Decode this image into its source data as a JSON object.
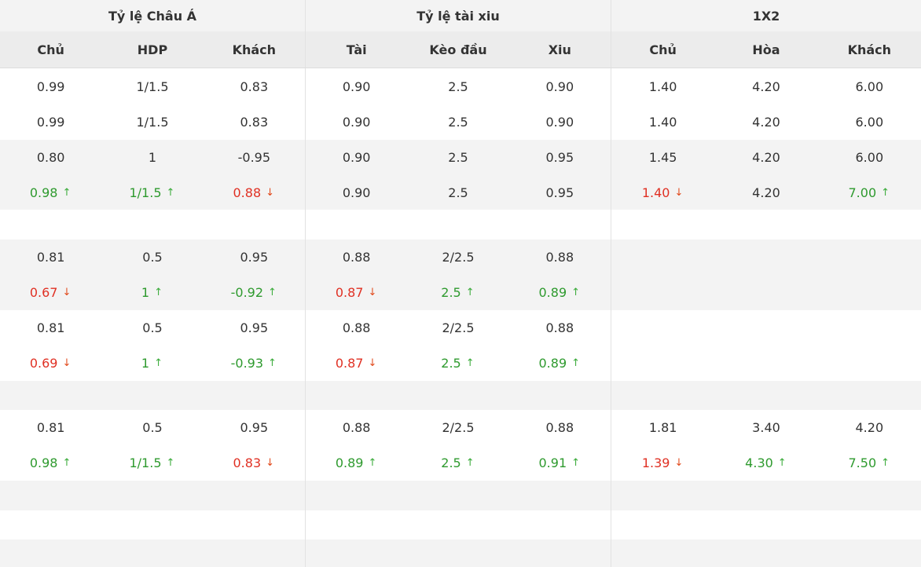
{
  "groups": {
    "asian": "Tỷ lệ Châu Á",
    "overunder": "Tỷ lệ tài xiu",
    "onextwo": "1X2"
  },
  "columns": {
    "asian": [
      "Chủ",
      "HDP",
      "Khách"
    ],
    "overunder": [
      "Tài",
      "Kèo đầu",
      "Xiu"
    ],
    "onextwo": [
      "Chủ",
      "Hòa",
      "Khách"
    ]
  },
  "icons": {
    "up": "arrow-up-icon",
    "down": "arrow-down-icon"
  },
  "colors": {
    "up": "#2e9a2e",
    "down": "#e03023",
    "header_bg": "#ececec",
    "stripe_bg": "#f3f3f3"
  },
  "rows": [
    {
      "cells": [
        {
          "v": "0.99"
        },
        {
          "v": "1/1.5"
        },
        {
          "v": "0.83"
        },
        {
          "v": "0.90"
        },
        {
          "v": "2.5"
        },
        {
          "v": "0.90"
        },
        {
          "v": "1.40"
        },
        {
          "v": "4.20"
        },
        {
          "v": "6.00"
        }
      ]
    },
    {
      "cells": [
        {
          "v": "0.99"
        },
        {
          "v": "1/1.5"
        },
        {
          "v": "0.83"
        },
        {
          "v": "0.90"
        },
        {
          "v": "2.5"
        },
        {
          "v": "0.90"
        },
        {
          "v": "1.40"
        },
        {
          "v": "4.20"
        },
        {
          "v": "6.00"
        }
      ]
    },
    {
      "cells": [
        {
          "v": "0.80"
        },
        {
          "v": "1"
        },
        {
          "v": "-0.95"
        },
        {
          "v": "0.90"
        },
        {
          "v": "2.5"
        },
        {
          "v": "0.95"
        },
        {
          "v": "1.45"
        },
        {
          "v": "4.20"
        },
        {
          "v": "6.00"
        }
      ]
    },
    {
      "cells": [
        {
          "v": "0.98",
          "t": "up"
        },
        {
          "v": "1/1.5",
          "t": "up"
        },
        {
          "v": "0.88",
          "t": "down"
        },
        {
          "v": "0.90"
        },
        {
          "v": "2.5"
        },
        {
          "v": "0.95"
        },
        {
          "v": "1.40",
          "t": "down"
        },
        {
          "v": "4.20"
        },
        {
          "v": "7.00",
          "t": "up"
        }
      ]
    },
    {
      "cells": [
        {},
        {},
        {},
        {},
        {},
        {},
        {},
        {},
        {}
      ]
    },
    {
      "cells": [
        {
          "v": "0.81"
        },
        {
          "v": "0.5"
        },
        {
          "v": "0.95"
        },
        {
          "v": "0.88"
        },
        {
          "v": "2/2.5"
        },
        {
          "v": "0.88"
        },
        {},
        {},
        {}
      ]
    },
    {
      "cells": [
        {
          "v": "0.67",
          "t": "down"
        },
        {
          "v": "1",
          "t": "up"
        },
        {
          "v": "-0.92",
          "t": "up"
        },
        {
          "v": "0.87",
          "t": "down"
        },
        {
          "v": "2.5",
          "t": "up"
        },
        {
          "v": "0.89",
          "t": "up"
        },
        {},
        {},
        {}
      ]
    },
    {
      "cells": [
        {
          "v": "0.81"
        },
        {
          "v": "0.5"
        },
        {
          "v": "0.95"
        },
        {
          "v": "0.88"
        },
        {
          "v": "2/2.5"
        },
        {
          "v": "0.88"
        },
        {},
        {},
        {}
      ]
    },
    {
      "cells": [
        {
          "v": "0.69",
          "t": "down"
        },
        {
          "v": "1",
          "t": "up"
        },
        {
          "v": "-0.93",
          "t": "up"
        },
        {
          "v": "0.87",
          "t": "down"
        },
        {
          "v": "2.5",
          "t": "up"
        },
        {
          "v": "0.89",
          "t": "up"
        },
        {},
        {},
        {}
      ]
    },
    {
      "cells": [
        {},
        {},
        {},
        {},
        {},
        {},
        {},
        {},
        {}
      ]
    },
    {
      "cells": [
        {
          "v": "0.81"
        },
        {
          "v": "0.5"
        },
        {
          "v": "0.95"
        },
        {
          "v": "0.88"
        },
        {
          "v": "2/2.5"
        },
        {
          "v": "0.88"
        },
        {
          "v": "1.81"
        },
        {
          "v": "3.40"
        },
        {
          "v": "4.20"
        }
      ]
    },
    {
      "cells": [
        {
          "v": "0.98",
          "t": "up"
        },
        {
          "v": "1/1.5",
          "t": "up"
        },
        {
          "v": "0.83",
          "t": "down"
        },
        {
          "v": "0.89",
          "t": "up"
        },
        {
          "v": "2.5",
          "t": "up"
        },
        {
          "v": "0.91",
          "t": "up"
        },
        {
          "v": "1.39",
          "t": "down"
        },
        {
          "v": "4.30",
          "t": "up"
        },
        {
          "v": "7.50",
          "t": "up"
        }
      ]
    },
    {
      "cells": [
        {},
        {},
        {},
        {},
        {},
        {},
        {},
        {},
        {}
      ]
    },
    {
      "cells": [
        {},
        {},
        {},
        {},
        {},
        {},
        {},
        {},
        {}
      ]
    },
    {
      "cells": [
        {},
        {},
        {},
        {},
        {},
        {},
        {},
        {},
        {}
      ]
    }
  ]
}
